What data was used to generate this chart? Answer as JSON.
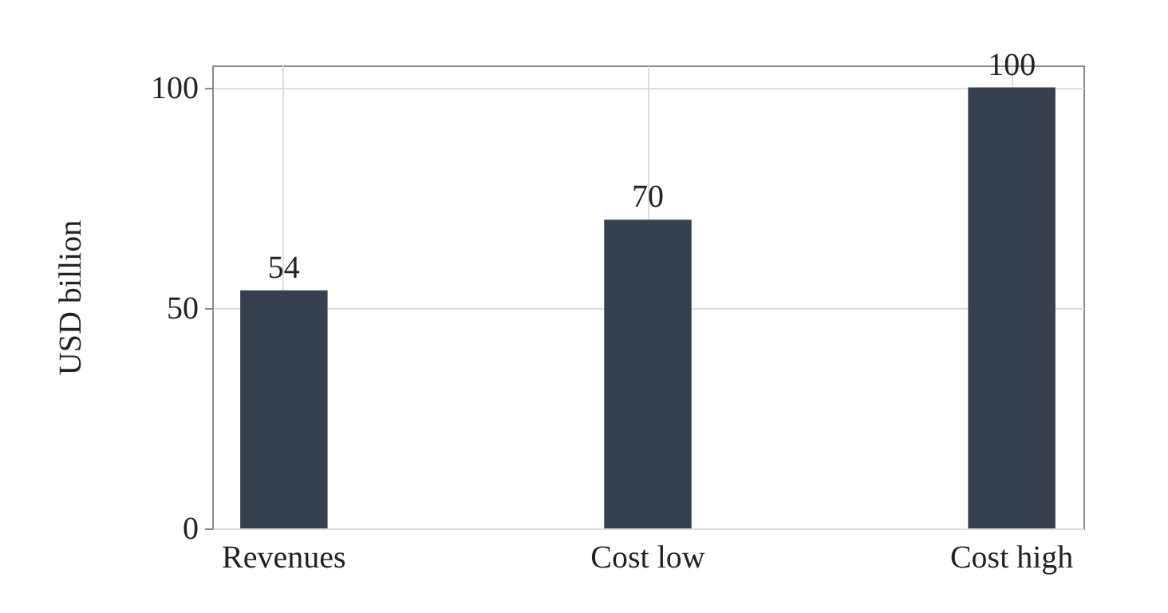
{
  "chart_data": {
    "type": "bar",
    "ylabel": "USD billion",
    "categories": [
      "Revenues",
      "Cost low",
      "Cost high"
    ],
    "values": [
      54,
      70,
      100
    ],
    "color": "#36404f",
    "ylim": [
      0,
      105
    ],
    "yticks": [
      0,
      50,
      100
    ],
    "grid": true,
    "data_labels": true
  }
}
